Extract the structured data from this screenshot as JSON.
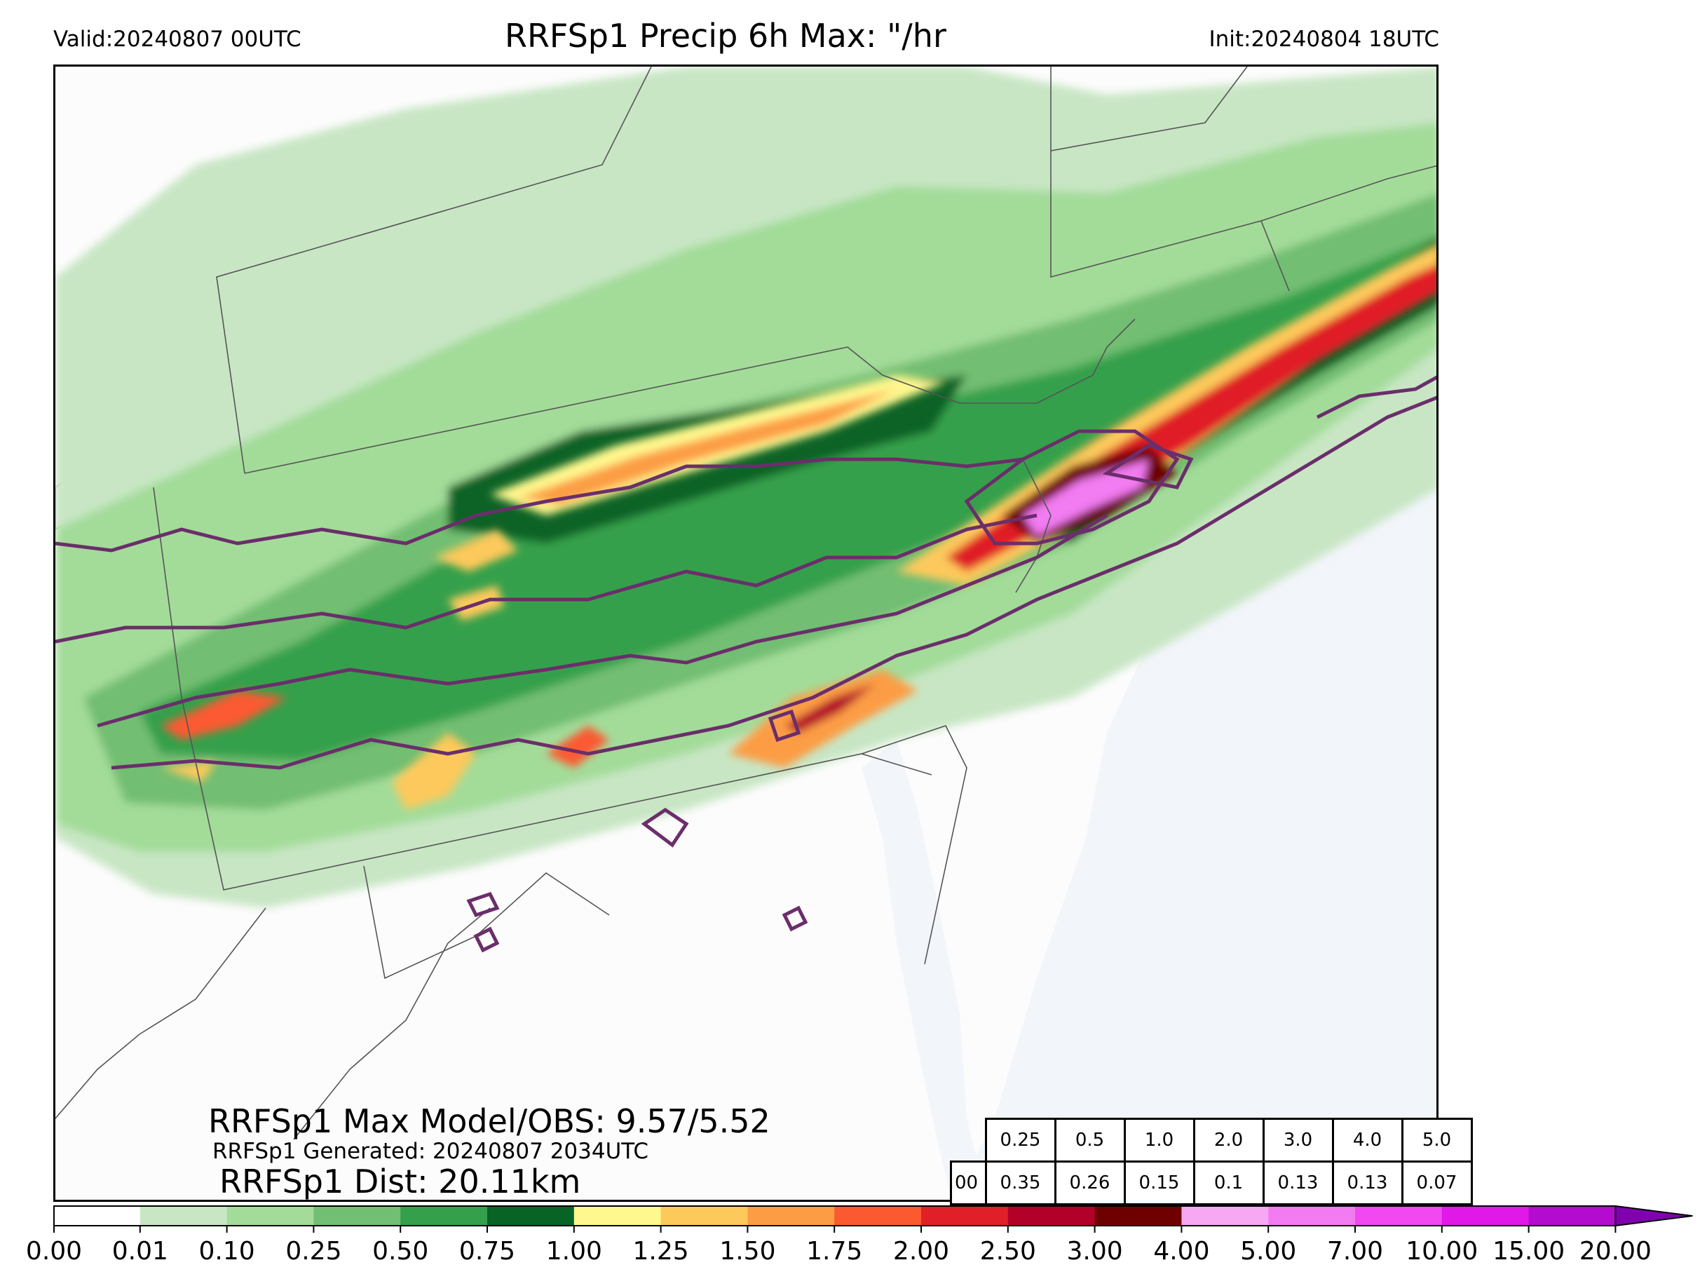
{
  "header": {
    "valid": "Valid:20240807 00UTC",
    "title": "RRFSp1 Precip 6h Max: \"/hr",
    "init": "Init:20240804 18UTC"
  },
  "info": {
    "max_model_obs": "RRFSp1 Max Model/OBS: 9.57/5.52",
    "generated": "RRFSp1 Generated: 20240807 2034UTC",
    "dist": "RRFSp1 Dist: 20.11km"
  },
  "threshold_table": {
    "thresholds": [
      "0.25",
      "0.5",
      "1.0",
      "2.0",
      "3.0",
      "4.0",
      "5.0"
    ],
    "row_label": "00",
    "values": [
      "0.35",
      "0.26",
      "0.15",
      "0.1",
      "0.13",
      "0.13",
      "0.07"
    ]
  },
  "colorbar": {
    "levels": [
      "0.00",
      "0.01",
      "0.10",
      "0.25",
      "0.50",
      "0.75",
      "1.00",
      "1.25",
      "1.50",
      "1.75",
      "2.00",
      "2.50",
      "3.00",
      "4.00",
      "5.00",
      "7.00",
      "10.00",
      "15.00",
      "20.00"
    ],
    "colors": [
      "#ffffff",
      "#c8e6c4",
      "#a3dc99",
      "#72be72",
      "#35a04c",
      "#076425",
      "#fff88e",
      "#fdc95b",
      "#fc9d45",
      "#fb5a31",
      "#e01f28",
      "#b20029",
      "#6e0000",
      "#f6a8f2",
      "#f27bf2",
      "#f148f1",
      "#e018e8",
      "#b30ccf"
    ],
    "extend_color": "#8000b0"
  },
  "map": {
    "ocean_color": "#f2f5fa",
    "land_color": "#fcfcfc",
    "contour_color": "#6b2e6b"
  }
}
